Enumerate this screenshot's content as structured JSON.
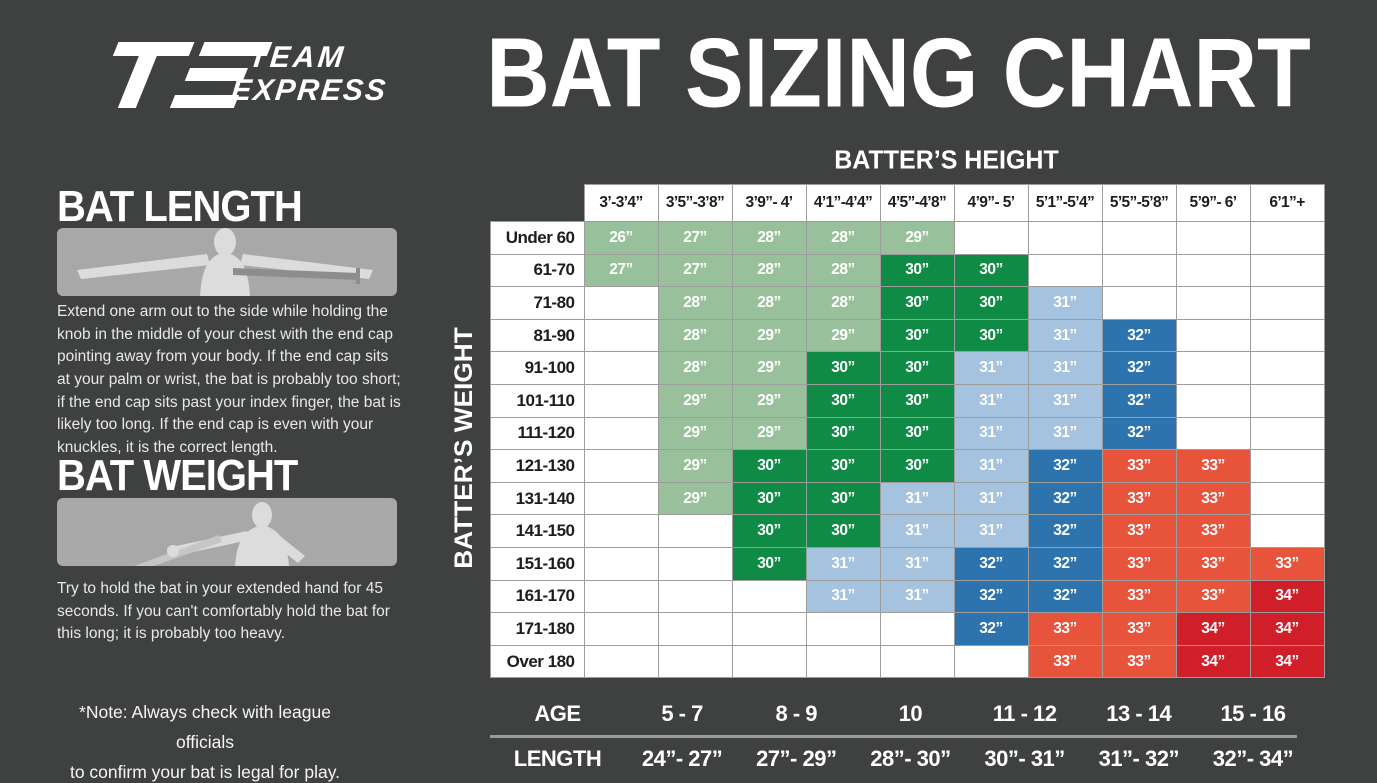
{
  "title": "BAT SIZING CHART",
  "logo": {
    "team": "TEAM",
    "express": "EXPRESS"
  },
  "colors": {
    "background": "#3f4040",
    "cell_border": "#9c9c9c",
    "panel_gray": "#a8a8a8",
    "silhouette_gray": "#dcdcdc"
  },
  "left_panel": {
    "bat_length": {
      "heading": "BAT LENGTH",
      "illustration_icon": "arms-outstretched-bat-silhouette",
      "description": "Extend one arm out to the side while holding the knob in the middle of your chest with the end cap pointing away from your body. If the end cap sits at your palm or wrist, the bat is probably too short; if the end cap sits past your index finger, the bat is likely too long. If the end cap is even with your knuckles, it is the correct length."
    },
    "bat_weight": {
      "heading": "BAT WEIGHT",
      "illustration_icon": "extended-arm-bat-silhouette",
      "description": "Try to hold the bat in your extended hand for 45 seconds. If you can't comfortably hold the bat for this long; it is probably too heavy."
    },
    "note_line1": "*Note: Always check with league officials",
    "note_line2": "to confirm your bat is legal for play."
  },
  "chart_data": {
    "type": "heatmap",
    "title": "BAT SIZING CHART",
    "x_axis_label": "BATTER’S HEIGHT",
    "y_axis_label": "BATTER’S WEIGHT",
    "legend_position": "none",
    "grid": true,
    "color_map": {
      "lg": "#98c19b",
      "dg": "#0f8b45",
      "lb": "#a5c2de",
      "db": "#2d74ae",
      "or": "#e8533c",
      "dr": "#d01f28"
    },
    "columns": [
      "3’-3’4”",
      "3’5”-3’8”",
      "3’9”- 4’",
      "4’1”-4’4”",
      "4’5”-4’8”",
      "4’9”- 5’",
      "5’1”-5’4”",
      "5’5”-5’8”",
      "5’9”- 6’",
      "6’1”+"
    ],
    "rows": [
      {
        "weight": "Under 60",
        "cells": [
          {
            "v": "26”",
            "c": "lg"
          },
          {
            "v": "27”",
            "c": "lg"
          },
          {
            "v": "28”",
            "c": "lg"
          },
          {
            "v": "28”",
            "c": "lg"
          },
          {
            "v": "29”",
            "c": "lg"
          },
          null,
          null,
          null,
          null,
          null
        ]
      },
      {
        "weight": "61-70",
        "cells": [
          {
            "v": "27”",
            "c": "lg"
          },
          {
            "v": "27”",
            "c": "lg"
          },
          {
            "v": "28”",
            "c": "lg"
          },
          {
            "v": "28”",
            "c": "lg"
          },
          {
            "v": "30”",
            "c": "dg"
          },
          {
            "v": "30”",
            "c": "dg"
          },
          null,
          null,
          null,
          null
        ]
      },
      {
        "weight": "71-80",
        "cells": [
          null,
          {
            "v": "28”",
            "c": "lg"
          },
          {
            "v": "28”",
            "c": "lg"
          },
          {
            "v": "28”",
            "c": "lg"
          },
          {
            "v": "30”",
            "c": "dg"
          },
          {
            "v": "30”",
            "c": "dg"
          },
          {
            "v": "31”",
            "c": "lb"
          },
          null,
          null,
          null
        ]
      },
      {
        "weight": "81-90",
        "cells": [
          null,
          {
            "v": "28”",
            "c": "lg"
          },
          {
            "v": "29”",
            "c": "lg"
          },
          {
            "v": "29”",
            "c": "lg"
          },
          {
            "v": "30”",
            "c": "dg"
          },
          {
            "v": "30”",
            "c": "dg"
          },
          {
            "v": "31”",
            "c": "lb"
          },
          {
            "v": "32”",
            "c": "db"
          },
          null,
          null
        ]
      },
      {
        "weight": "91-100",
        "cells": [
          null,
          {
            "v": "28”",
            "c": "lg"
          },
          {
            "v": "29”",
            "c": "lg"
          },
          {
            "v": "30”",
            "c": "dg"
          },
          {
            "v": "30”",
            "c": "dg"
          },
          {
            "v": "31”",
            "c": "lb"
          },
          {
            "v": "31”",
            "c": "lb"
          },
          {
            "v": "32”",
            "c": "db"
          },
          null,
          null
        ]
      },
      {
        "weight": "101-110",
        "cells": [
          null,
          {
            "v": "29”",
            "c": "lg"
          },
          {
            "v": "29”",
            "c": "lg"
          },
          {
            "v": "30”",
            "c": "dg"
          },
          {
            "v": "30”",
            "c": "dg"
          },
          {
            "v": "31”",
            "c": "lb"
          },
          {
            "v": "31”",
            "c": "lb"
          },
          {
            "v": "32”",
            "c": "db"
          },
          null,
          null
        ]
      },
      {
        "weight": "111-120",
        "cells": [
          null,
          {
            "v": "29”",
            "c": "lg"
          },
          {
            "v": "29”",
            "c": "lg"
          },
          {
            "v": "30”",
            "c": "dg"
          },
          {
            "v": "30”",
            "c": "dg"
          },
          {
            "v": "31”",
            "c": "lb"
          },
          {
            "v": "31”",
            "c": "lb"
          },
          {
            "v": "32”",
            "c": "db"
          },
          null,
          null
        ]
      },
      {
        "weight": "121-130",
        "cells": [
          null,
          {
            "v": "29”",
            "c": "lg"
          },
          {
            "v": "30”",
            "c": "dg"
          },
          {
            "v": "30”",
            "c": "dg"
          },
          {
            "v": "30”",
            "c": "dg"
          },
          {
            "v": "31”",
            "c": "lb"
          },
          {
            "v": "32”",
            "c": "db"
          },
          {
            "v": "33”",
            "c": "or"
          },
          {
            "v": "33”",
            "c": "or"
          },
          null
        ]
      },
      {
        "weight": "131-140",
        "cells": [
          null,
          {
            "v": "29”",
            "c": "lg"
          },
          {
            "v": "30”",
            "c": "dg"
          },
          {
            "v": "30”",
            "c": "dg"
          },
          {
            "v": "31”",
            "c": "lb"
          },
          {
            "v": "31”",
            "c": "lb"
          },
          {
            "v": "32”",
            "c": "db"
          },
          {
            "v": "33”",
            "c": "or"
          },
          {
            "v": "33”",
            "c": "or"
          },
          null
        ]
      },
      {
        "weight": "141-150",
        "cells": [
          null,
          null,
          {
            "v": "30”",
            "c": "dg"
          },
          {
            "v": "30”",
            "c": "dg"
          },
          {
            "v": "31”",
            "c": "lb"
          },
          {
            "v": "31”",
            "c": "lb"
          },
          {
            "v": "32”",
            "c": "db"
          },
          {
            "v": "33”",
            "c": "or"
          },
          {
            "v": "33”",
            "c": "or"
          },
          null
        ]
      },
      {
        "weight": "151-160",
        "cells": [
          null,
          null,
          {
            "v": "30”",
            "c": "dg"
          },
          {
            "v": "31”",
            "c": "lb"
          },
          {
            "v": "31”",
            "c": "lb"
          },
          {
            "v": "32”",
            "c": "db"
          },
          {
            "v": "32”",
            "c": "db"
          },
          {
            "v": "33”",
            "c": "or"
          },
          {
            "v": "33”",
            "c": "or"
          },
          {
            "v": "33”",
            "c": "or"
          }
        ]
      },
      {
        "weight": "161-170",
        "cells": [
          null,
          null,
          null,
          {
            "v": "31”",
            "c": "lb"
          },
          {
            "v": "31”",
            "c": "lb"
          },
          {
            "v": "32”",
            "c": "db"
          },
          {
            "v": "32”",
            "c": "db"
          },
          {
            "v": "33”",
            "c": "or"
          },
          {
            "v": "33”",
            "c": "or"
          },
          {
            "v": "34”",
            "c": "dr"
          }
        ]
      },
      {
        "weight": "171-180",
        "cells": [
          null,
          null,
          null,
          null,
          null,
          {
            "v": "32”",
            "c": "db"
          },
          {
            "v": "33”",
            "c": "or"
          },
          {
            "v": "33”",
            "c": "or"
          },
          {
            "v": "34”",
            "c": "dr"
          },
          {
            "v": "34”",
            "c": "dr"
          }
        ]
      },
      {
        "weight": "Over 180",
        "cells": [
          null,
          null,
          null,
          null,
          null,
          null,
          {
            "v": "33”",
            "c": "or"
          },
          {
            "v": "33”",
            "c": "or"
          },
          {
            "v": "34”",
            "c": "dr"
          },
          {
            "v": "34”",
            "c": "dr"
          }
        ]
      }
    ],
    "age_table": {
      "age_label": "AGE",
      "length_label": "LENGTH",
      "ages": [
        "5 - 7",
        "8 - 9",
        "10",
        "11 - 12",
        "13 - 14",
        "15 - 16"
      ],
      "lengths": [
        "24”- 27”",
        "27”- 29”",
        "28”- 30”",
        "30”- 31”",
        "31”- 32”",
        "32”- 34”"
      ]
    }
  }
}
